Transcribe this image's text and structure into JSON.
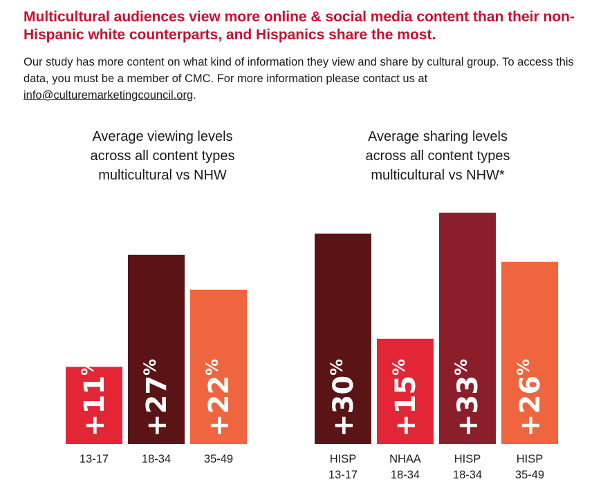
{
  "headline": "Multicultural audiences view more online & social media content than their non-Hispanic white counterparts, and Hispanics share the most.",
  "intro": {
    "text": "Our study has more content on what kind of information they view and share by cultural group. To access this data, you must be a member of CMC. For more information please contact us at ",
    "email": "info@culturemarketingcouncil.org",
    "end": "."
  },
  "chart_data": [
    {
      "type": "bar",
      "title": [
        "Average viewing levels",
        "across all content types",
        "multicultural vs NHW"
      ],
      "categories": [
        [
          "13-17"
        ],
        [
          "18-34"
        ],
        [
          "35-49"
        ]
      ],
      "values": [
        11,
        27,
        22
      ],
      "labels": [
        "+11%",
        "+27%",
        "+22%"
      ],
      "colors": [
        "#e32636",
        "#5a1416",
        "#ee6540"
      ]
    },
    {
      "type": "bar",
      "title": [
        "Average sharing levels",
        "across all content types",
        "multicultural vs NHW*"
      ],
      "categories": [
        [
          "HISP",
          "13-17"
        ],
        [
          "NHAA",
          "18-34"
        ],
        [
          "HISP",
          "18-34"
        ],
        [
          "HISP",
          "35-49"
        ]
      ],
      "values": [
        30,
        15,
        33,
        26
      ],
      "labels": [
        "+30%",
        "+15%",
        "+33%",
        "+26%"
      ],
      "colors": [
        "#5a1416",
        "#e32636",
        "#8b1e2b",
        "#ee6540"
      ]
    }
  ]
}
